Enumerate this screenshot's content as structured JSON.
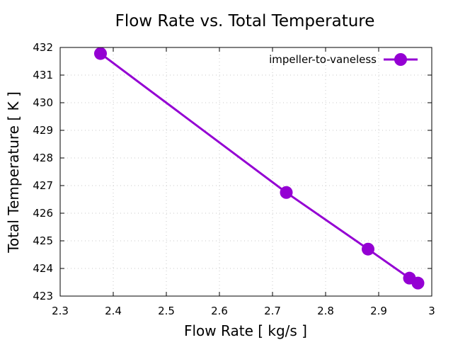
{
  "chart_data": {
    "type": "line",
    "title": "Flow Rate vs. Total Temperature",
    "xlabel": "Flow Rate [ kg/s ]",
    "ylabel": "Total Temperature [ K ]",
    "xlim": [
      2.3,
      3.0
    ],
    "ylim": [
      423,
      432
    ],
    "xticks": [
      "2.3",
      "2.4",
      "2.5",
      "2.6",
      "2.7",
      "2.8",
      "2.9",
      "3"
    ],
    "yticks": [
      "423",
      "424",
      "425",
      "426",
      "427",
      "428",
      "429",
      "430",
      "431",
      "432"
    ],
    "grid": true,
    "legend_position": "top-right",
    "series": [
      {
        "name": "impeller-to-vaneless",
        "color": "#9400d3",
        "marker": "circle",
        "x": [
          2.376,
          2.726,
          2.88,
          2.958,
          2.974
        ],
        "y": [
          431.78,
          426.75,
          424.7,
          423.65,
          423.47
        ]
      }
    ]
  }
}
